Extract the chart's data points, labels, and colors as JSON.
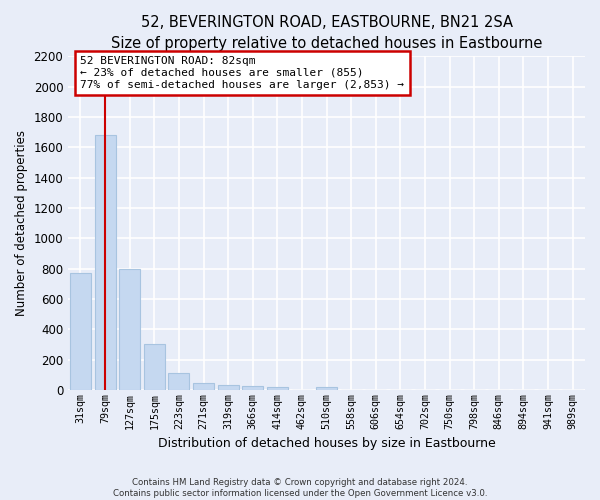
{
  "title": "52, BEVERINGTON ROAD, EASTBOURNE, BN21 2SA",
  "subtitle": "Size of property relative to detached houses in Eastbourne",
  "xlabel": "Distribution of detached houses by size in Eastbourne",
  "ylabel": "Number of detached properties",
  "categories": [
    "31sqm",
    "79sqm",
    "127sqm",
    "175sqm",
    "223sqm",
    "271sqm",
    "319sqm",
    "366sqm",
    "414sqm",
    "462sqm",
    "510sqm",
    "558sqm",
    "606sqm",
    "654sqm",
    "702sqm",
    "750sqm",
    "798sqm",
    "846sqm",
    "894sqm",
    "941sqm",
    "989sqm"
  ],
  "bar_values": [
    770,
    1680,
    795,
    300,
    110,
    45,
    32,
    25,
    22,
    0,
    22,
    0,
    0,
    0,
    0,
    0,
    0,
    0,
    0,
    0,
    0
  ],
  "bar_color": "#c5d8f0",
  "bar_edge_color": "#a8c4e0",
  "vline_x": 1.5,
  "annotation_text": "52 BEVERINGTON ROAD: 82sqm\n← 23% of detached houses are smaller (855)\n77% of semi-detached houses are larger (2,853) →",
  "annotation_box_color": "white",
  "annotation_box_edge_color": "#cc0000",
  "vline_color": "#cc0000",
  "ylim": [
    0,
    2200
  ],
  "yticks": [
    0,
    200,
    400,
    600,
    800,
    1000,
    1200,
    1400,
    1600,
    1800,
    2000,
    2200
  ],
  "footer_line1": "Contains HM Land Registry data © Crown copyright and database right 2024.",
  "footer_line2": "Contains public sector information licensed under the Open Government Licence v3.0.",
  "bg_color": "#e8edf8",
  "plot_bg_color": "#e8edf8",
  "grid_color": "white",
  "title_fontsize": 10.5,
  "subtitle_fontsize": 9.5
}
